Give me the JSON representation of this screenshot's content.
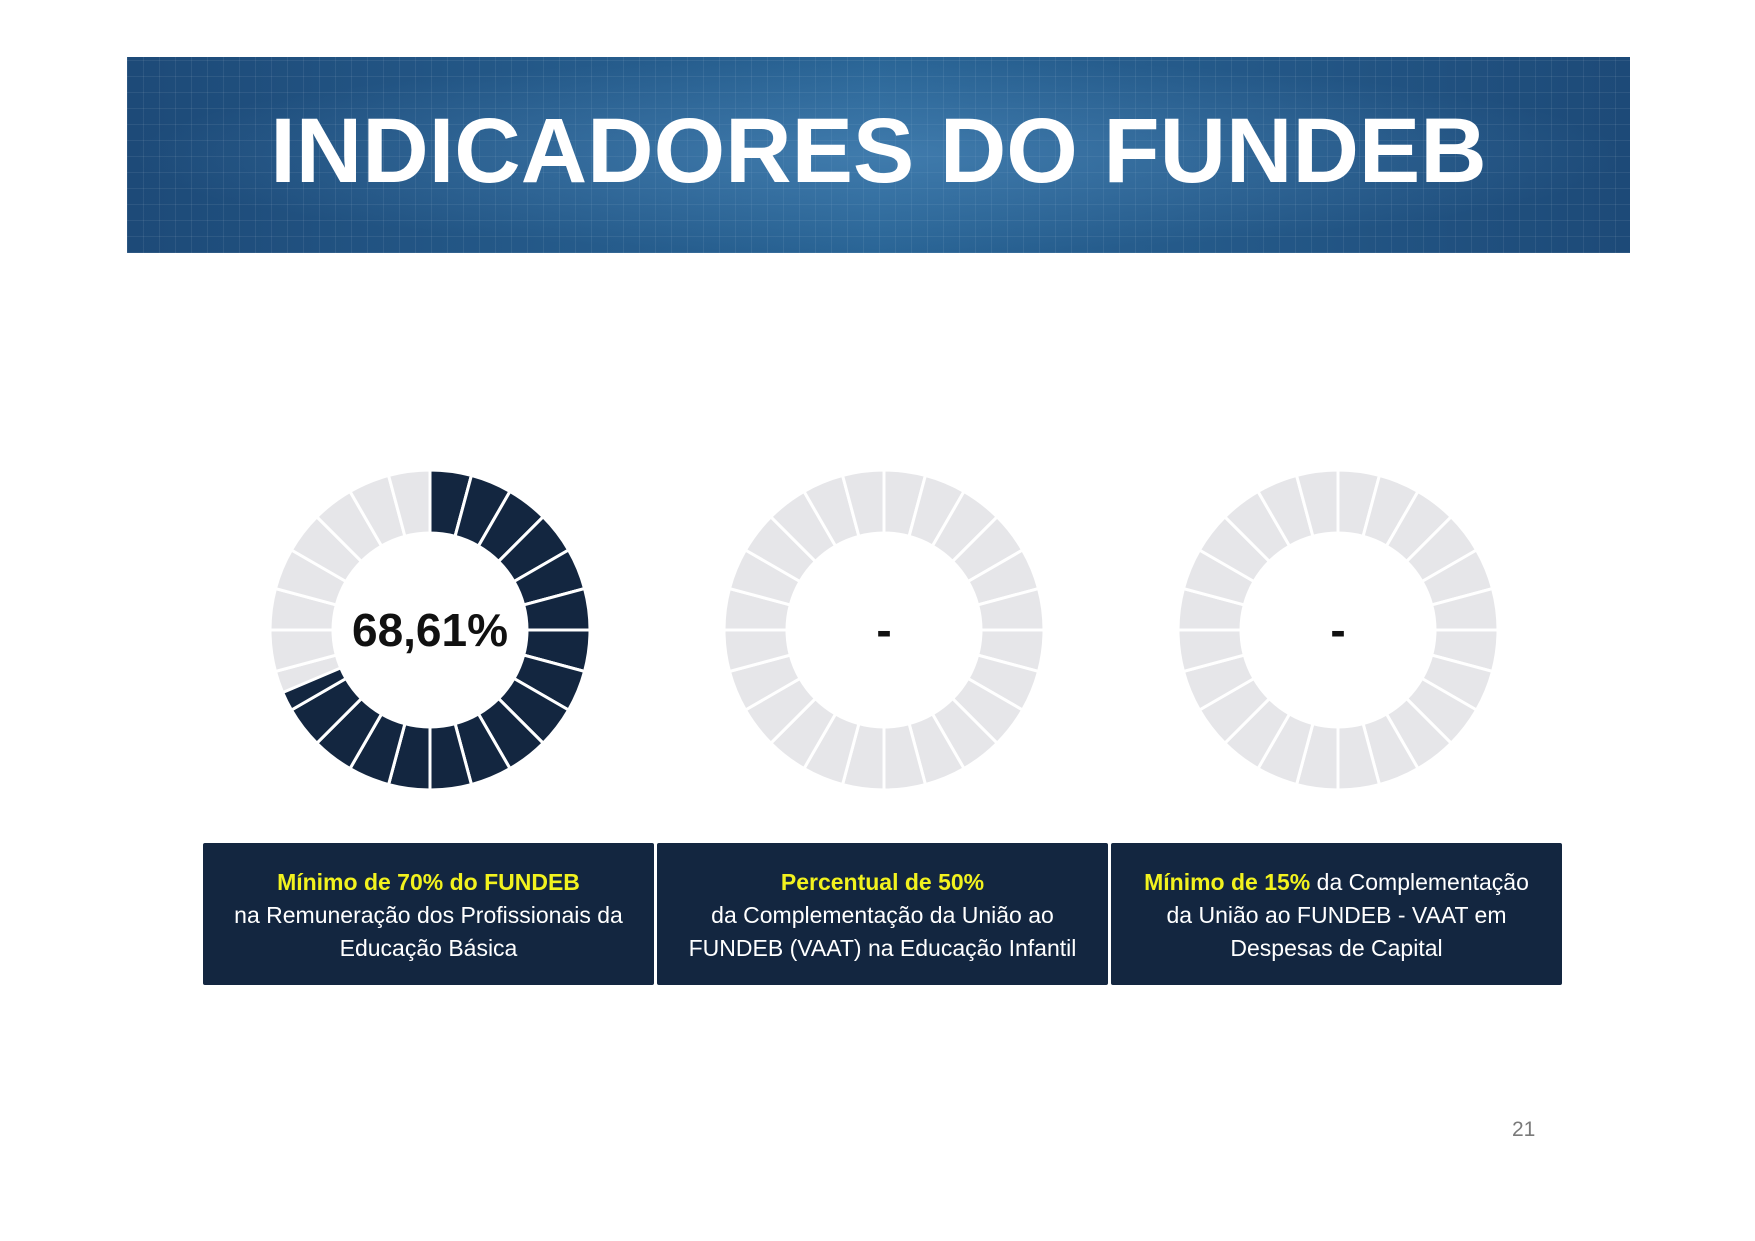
{
  "header": {
    "title": "INDICADORES DO FUNDEB"
  },
  "chart_data": [
    {
      "type": "pie",
      "segments_total": 24,
      "values": [
        68.61
      ],
      "value_label": "68,61%",
      "filled_color": "#132640",
      "empty_color": "#e6e6e9"
    },
    {
      "type": "pie",
      "segments_total": 24,
      "values": [
        0
      ],
      "value_label": "-",
      "filled_color": "#132640",
      "empty_color": "#e6e6e9"
    },
    {
      "type": "pie",
      "segments_total": 24,
      "values": [
        0
      ],
      "value_label": "-",
      "filled_color": "#132640",
      "empty_color": "#e6e6e9"
    }
  ],
  "indicators": [
    {
      "highlight": "Mínimo de 70% do FUNDEB",
      "line1": "na Remuneração dos Profissionais da",
      "line2": "Educação Básica"
    },
    {
      "highlight": "Percentual de 50%",
      "line1": "da Complementação da União ao",
      "line2": "FUNDEB (VAAT) na Educação Infantil"
    },
    {
      "highlight": "Mínimo de 15%",
      "line1_rest": " da Complementação",
      "line2": "da União ao FUNDEB - VAAT em",
      "line3": "Despesas de Capital"
    }
  ],
  "page_number": "21",
  "colors": {
    "accent_highlight": "#f2f21e",
    "box_background": "#132640",
    "banner": "#23588a"
  }
}
